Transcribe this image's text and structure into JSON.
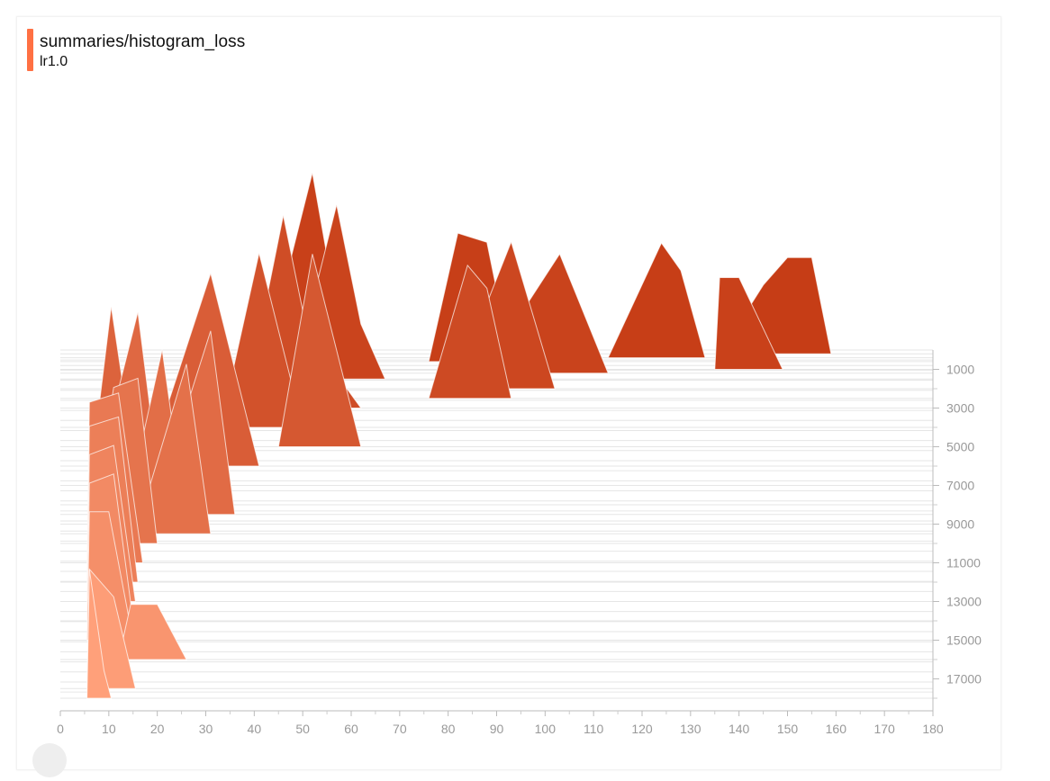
{
  "header": {
    "title": "summaries/histogram_loss",
    "run": "lr1.0",
    "run_color": "#ff7043"
  },
  "chart_data": {
    "type": "area",
    "subtype": "histogram-offset",
    "title": "summaries/histogram_loss",
    "series_name": "lr1.0",
    "x_ticks": [
      0,
      10,
      20,
      30,
      40,
      50,
      60,
      70,
      80,
      90,
      100,
      110,
      120,
      130,
      140,
      150,
      160,
      170,
      180
    ],
    "xlim": [
      0,
      180
    ],
    "y_ticks": [
      1000,
      3000,
      5000,
      7000,
      9000,
      11000,
      13000,
      15000,
      17000
    ],
    "ylim": [
      -1000,
      18500
    ],
    "y_axis_position": "right",
    "colors": {
      "early": "#ffa07a",
      "late": "#c63d16"
    },
    "histograms": [
      {
        "step": 18000,
        "bins": [
          [
            5.5,
            0
          ],
          [
            6,
            14
          ],
          [
            9,
            3
          ],
          [
            10.5,
            0
          ]
        ]
      },
      {
        "step": 17500,
        "bins": [
          [
            5.5,
            0
          ],
          [
            6,
            13
          ],
          [
            11,
            10
          ],
          [
            15.5,
            0
          ]
        ]
      },
      {
        "step": 16000,
        "bins": [
          [
            12,
            0
          ],
          [
            14.5,
            6
          ],
          [
            20,
            6
          ],
          [
            26,
            0
          ]
        ]
      },
      {
        "step": 15000,
        "bins": [
          [
            5.5,
            0
          ],
          [
            6,
            14
          ],
          [
            10,
            14
          ],
          [
            15,
            0
          ]
        ]
      },
      {
        "step": 14000,
        "bins": [
          [
            5.5,
            0
          ],
          [
            6,
            15
          ],
          [
            11,
            16
          ],
          [
            15,
            0
          ]
        ]
      },
      {
        "step": 13000,
        "bins": [
          [
            5.5,
            0
          ],
          [
            6,
            16
          ],
          [
            11,
            17
          ],
          [
            15.5,
            0
          ]
        ]
      },
      {
        "step": 12000,
        "bins": [
          [
            5.5,
            0
          ],
          [
            6,
            17
          ],
          [
            12,
            18
          ],
          [
            16,
            0
          ]
        ]
      },
      {
        "step": 11000,
        "bins": [
          [
            5.5,
            0
          ],
          [
            6,
            17.5
          ],
          [
            12,
            18.5
          ],
          [
            17,
            0
          ]
        ]
      },
      {
        "step": 10000,
        "bins": [
          [
            6,
            0
          ],
          [
            11,
            17
          ],
          [
            16,
            18
          ],
          [
            20,
            0
          ]
        ]
      },
      {
        "step": 9500,
        "bins": [
          [
            15.5,
            0
          ],
          [
            26,
            18.5
          ],
          [
            31,
            0
          ]
        ]
      },
      {
        "step": 9000,
        "bins": [
          [
            13,
            0
          ],
          [
            21,
            19
          ],
          [
            26,
            0
          ]
        ]
      },
      {
        "step": 8500,
        "bins": [
          [
            19,
            0
          ],
          [
            31,
            20
          ],
          [
            36,
            0
          ]
        ]
      },
      {
        "step": 8000,
        "bins": [
          [
            6,
            0
          ],
          [
            16,
            21
          ],
          [
            21,
            0
          ]
        ]
      },
      {
        "step": 7000,
        "bins": [
          [
            6,
            0
          ],
          [
            10.5,
            19.5
          ],
          [
            16,
            0
          ]
        ]
      },
      {
        "step": 6000,
        "bins": [
          [
            18,
            0
          ],
          [
            31,
            21
          ],
          [
            41,
            0
          ]
        ]
      },
      {
        "step": 5000,
        "bins": [
          [
            45,
            0
          ],
          [
            52,
            21
          ],
          [
            62,
            0
          ]
        ]
      },
      {
        "step": 4000,
        "bins": [
          [
            33,
            0
          ],
          [
            41,
            19
          ],
          [
            50,
            0
          ]
        ]
      },
      {
        "step": 3000,
        "bins": [
          [
            38,
            0
          ],
          [
            46,
            21
          ],
          [
            51,
            8
          ],
          [
            62,
            0
          ]
        ]
      },
      {
        "step": 2500,
        "bins": [
          [
            76,
            0
          ],
          [
            84,
            14.5
          ],
          [
            88,
            12
          ],
          [
            93,
            0
          ]
        ]
      },
      {
        "step": 2000,
        "bins": [
          [
            81,
            0
          ],
          [
            93,
            16
          ],
          [
            102,
            0
          ]
        ]
      },
      {
        "step": 1500,
        "bins": [
          [
            48,
            0
          ],
          [
            57,
            19
          ],
          [
            62,
            6
          ],
          [
            67,
            0
          ]
        ]
      },
      {
        "step": 1200,
        "bins": [
          [
            87,
            0
          ],
          [
            103,
            13
          ],
          [
            113,
            0
          ]
        ]
      },
      {
        "step": 1000,
        "bins": [
          [
            135,
            0
          ],
          [
            136,
            10
          ],
          [
            140,
            10
          ],
          [
            149,
            0
          ]
        ]
      },
      {
        "step": 800,
        "bins": [
          [
            42,
            0
          ],
          [
            52,
            21
          ],
          [
            57,
            6
          ],
          [
            62,
            0
          ]
        ]
      },
      {
        "step": 600,
        "bins": [
          [
            76,
            0
          ],
          [
            82,
            14
          ],
          [
            88,
            13
          ],
          [
            93,
            0
          ]
        ]
      },
      {
        "step": 400,
        "bins": [
          [
            113,
            0
          ],
          [
            124,
            12.5
          ],
          [
            128,
            9.5
          ],
          [
            133,
            0
          ]
        ]
      },
      {
        "step": 200,
        "bins": [
          [
            136,
            0
          ],
          [
            145,
            7.5
          ],
          [
            150,
            10.5
          ],
          [
            155,
            10.5
          ],
          [
            159,
            0
          ]
        ]
      }
    ]
  }
}
